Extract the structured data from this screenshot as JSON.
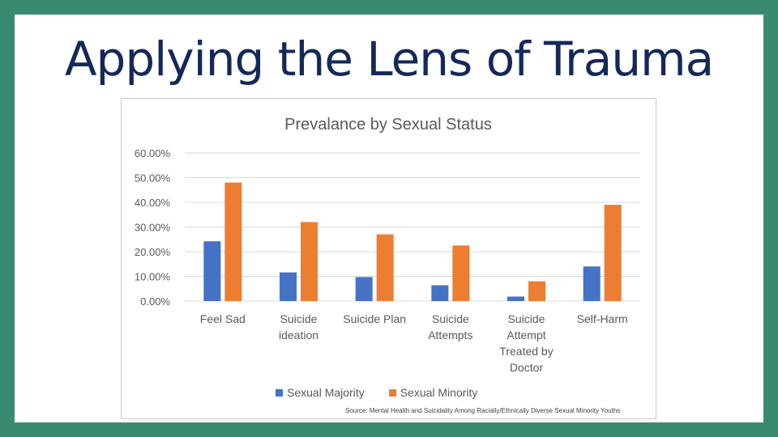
{
  "slide": {
    "title": "Applying the Lens of Trauma"
  },
  "colors": {
    "background": "#3a8a72",
    "title": "#14285a",
    "series_majority": "#4472c4",
    "series_minority": "#ed7d31",
    "gridline": "#d9d9d9",
    "axis_text": "#595959"
  },
  "chart_data": {
    "type": "bar",
    "title": "Prevalance by Sexual Status",
    "categories": [
      [
        "Feel Sad"
      ],
      [
        "Suicide",
        "ideation"
      ],
      [
        "Suicide Plan"
      ],
      [
        "Suicide",
        "Attempts"
      ],
      [
        "Suicide",
        "Attempt",
        "Treated by",
        "Doctor"
      ],
      [
        "Self-Harm"
      ]
    ],
    "series": [
      {
        "name": "Sexual Majority",
        "values": [
          24.2,
          11.6,
          9.7,
          6.4,
          1.8,
          14.0
        ]
      },
      {
        "name": "Sexual Minority",
        "values": [
          48.0,
          32.0,
          27.0,
          22.5,
          8.0,
          39.0
        ]
      }
    ],
    "ylim": [
      0,
      60
    ],
    "yticks": [
      "0.00%",
      "10.00%",
      "20.00%",
      "30.00%",
      "40.00%",
      "50.00%",
      "60.00%"
    ],
    "legend_position": "bottom",
    "source": "Source: Mental Health and Suicidality Among Racially/Ethnically Diverse Sexual Minority Youths"
  }
}
